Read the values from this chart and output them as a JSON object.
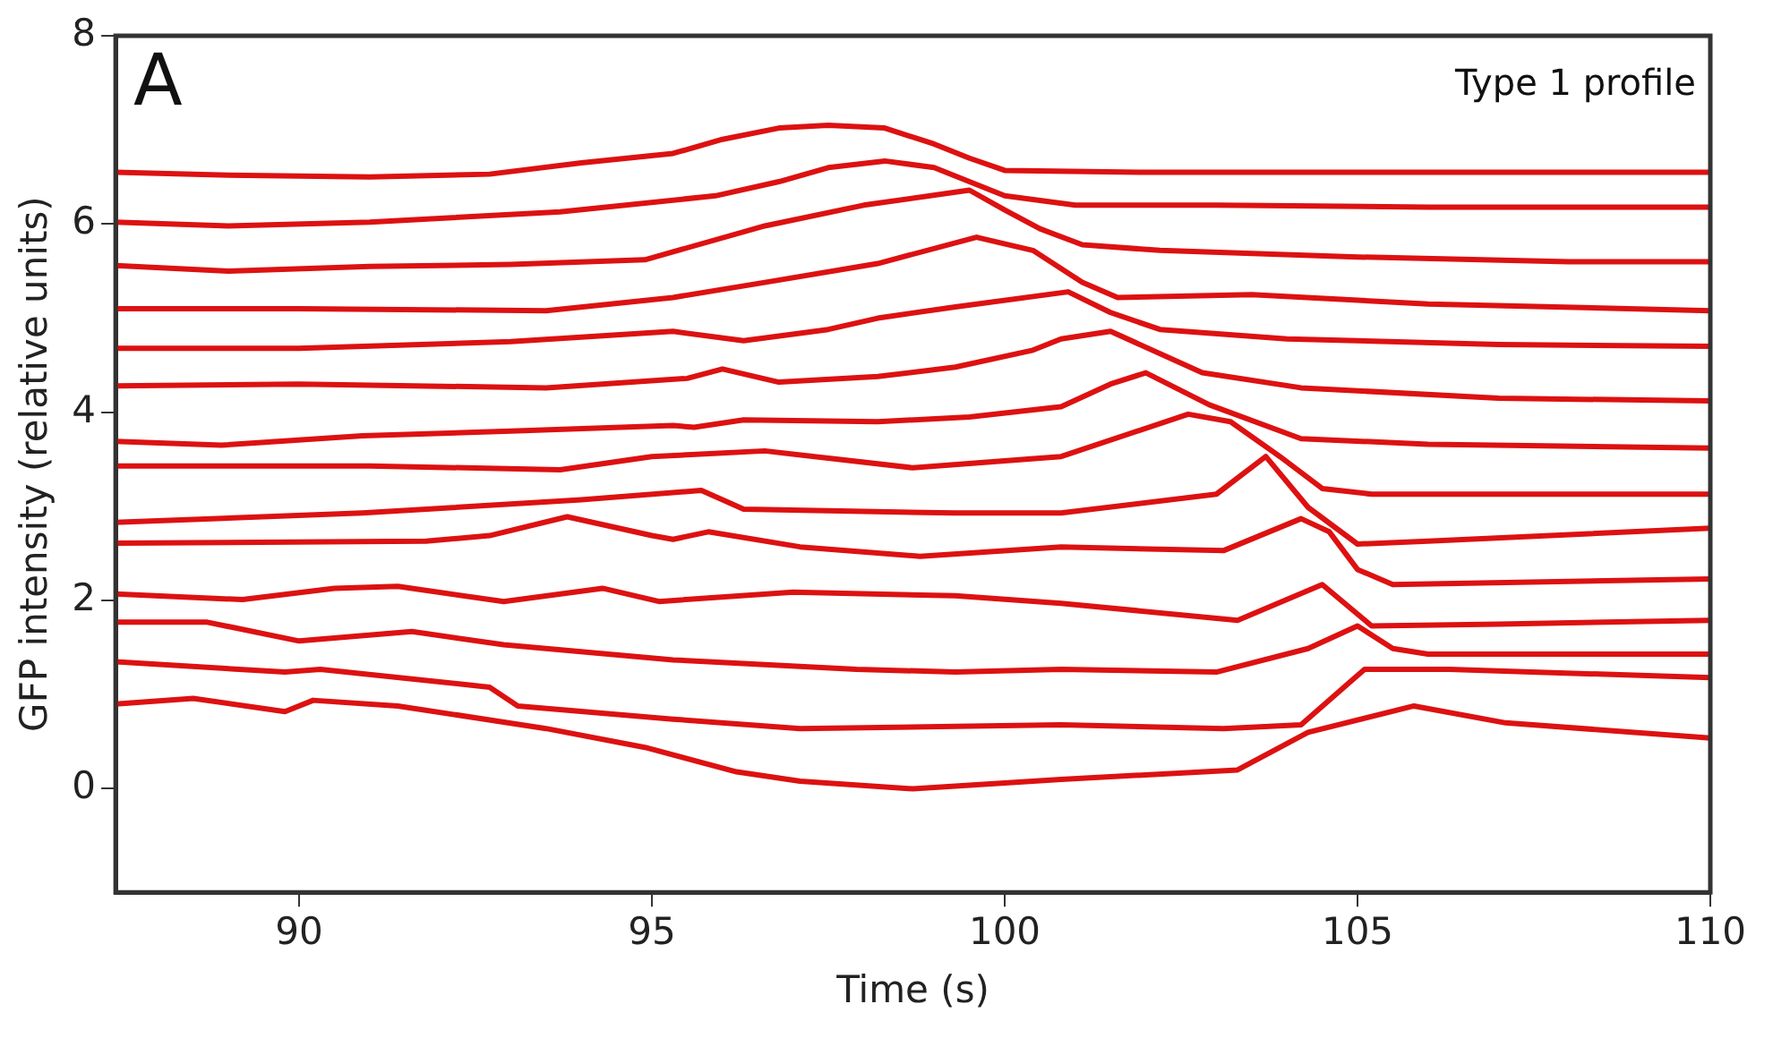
{
  "chart_data": {
    "type": "line",
    "xlabel": "Time (s)",
    "ylabel": "GFP intensity (relative units)",
    "annotations": [
      "A",
      "Type 1 profile"
    ],
    "xlim": [
      87.4,
      110
    ],
    "ylim": [
      -1.1,
      8
    ],
    "xticks": [
      90,
      95,
      100,
      105,
      110
    ],
    "yticks": [
      0,
      2,
      4,
      6,
      8
    ],
    "grid": false,
    "legend": false,
    "marker": "none",
    "line_style": "solid",
    "series": [
      {
        "color": "#dd1111",
        "x": [
          87.4,
          89,
          91,
          92.7,
          94,
          95.3,
          96,
          96.8,
          97.5,
          98.3,
          99,
          99.5,
          100,
          102,
          105,
          108,
          110
        ],
        "values": [
          6.55,
          6.52,
          6.5,
          6.53,
          6.65,
          6.75,
          6.9,
          7.02,
          7.05,
          7.02,
          6.85,
          6.7,
          6.57,
          6.55,
          6.55,
          6.55,
          6.55
        ]
      },
      {
        "color": "#dd1111",
        "x": [
          87.4,
          89,
          91,
          93.7,
          95.9,
          96.8,
          97.5,
          98.3,
          99,
          99.5,
          100,
          101,
          103,
          106,
          110
        ],
        "values": [
          6.02,
          5.98,
          6.02,
          6.13,
          6.3,
          6.45,
          6.6,
          6.67,
          6.6,
          6.45,
          6.3,
          6.2,
          6.2,
          6.18,
          6.18
        ]
      },
      {
        "color": "#dd1111",
        "x": [
          87.4,
          89,
          91,
          93,
          94.9,
          96.6,
          98,
          99.5,
          100,
          100.5,
          101.1,
          102.2,
          105,
          108,
          110
        ],
        "values": [
          5.56,
          5.5,
          5.55,
          5.57,
          5.62,
          5.98,
          6.2,
          6.36,
          6.15,
          5.95,
          5.78,
          5.72,
          5.65,
          5.6,
          5.6
        ]
      },
      {
        "color": "#dd1111",
        "x": [
          87.4,
          90,
          93.5,
          95.3,
          96.6,
          98.2,
          99.6,
          100.4,
          101.1,
          101.6,
          103.5,
          106,
          110
        ],
        "values": [
          5.1,
          5.1,
          5.08,
          5.22,
          5.38,
          5.58,
          5.86,
          5.72,
          5.38,
          5.22,
          5.25,
          5.15,
          5.08
        ]
      },
      {
        "color": "#dd1111",
        "x": [
          87.4,
          90,
          93,
          95.3,
          96.3,
          97.5,
          98.2,
          99.3,
          100.9,
          101.5,
          102.2,
          104,
          107,
          110
        ],
        "values": [
          4.68,
          4.68,
          4.75,
          4.86,
          4.76,
          4.88,
          5.0,
          5.12,
          5.28,
          5.06,
          4.88,
          4.78,
          4.72,
          4.7
        ]
      },
      {
        "color": "#dd1111",
        "x": [
          87.4,
          90,
          93.5,
          95.5,
          96,
          96.8,
          98.2,
          99.3,
          100.4,
          100.8,
          101.5,
          102.8,
          104.2,
          107,
          110
        ],
        "values": [
          4.28,
          4.3,
          4.26,
          4.36,
          4.46,
          4.32,
          4.38,
          4.48,
          4.66,
          4.78,
          4.86,
          4.42,
          4.26,
          4.15,
          4.12
        ]
      },
      {
        "color": "#dd1111",
        "x": [
          87.4,
          88.9,
          90.9,
          93,
          95.3,
          95.6,
          96.3,
          98.2,
          99.5,
          100.8,
          101.5,
          102,
          102.9,
          104.2,
          106,
          110
        ],
        "values": [
          3.69,
          3.65,
          3.75,
          3.8,
          3.86,
          3.84,
          3.92,
          3.9,
          3.95,
          4.06,
          4.3,
          4.42,
          4.08,
          3.72,
          3.66,
          3.62
        ]
      },
      {
        "color": "#dd1111",
        "x": [
          87.4,
          91,
          93.7,
          95,
          96.6,
          98.7,
          100.8,
          102.6,
          103.2,
          103.9,
          104.5,
          105.2,
          107,
          110
        ],
        "values": [
          3.43,
          3.43,
          3.39,
          3.53,
          3.59,
          3.41,
          3.53,
          3.98,
          3.9,
          3.53,
          3.19,
          3.13,
          3.13,
          3.13
        ]
      },
      {
        "color": "#dd1111",
        "x": [
          87.4,
          90.9,
          94,
          95.7,
          96.3,
          99.3,
          100.8,
          103,
          103.7,
          104.3,
          105,
          106,
          110
        ],
        "values": [
          2.83,
          2.93,
          3.07,
          3.17,
          2.97,
          2.93,
          2.93,
          3.13,
          3.53,
          2.99,
          2.6,
          2.63,
          2.77
        ]
      },
      {
        "color": "#dd1111",
        "x": [
          87.4,
          91.8,
          92.7,
          93.8,
          95,
          95.3,
          95.8,
          97.1,
          98.8,
          100.8,
          103.1,
          104.2,
          104.6,
          105,
          105.5,
          110
        ],
        "values": [
          2.61,
          2.63,
          2.69,
          2.89,
          2.69,
          2.65,
          2.73,
          2.57,
          2.47,
          2.57,
          2.53,
          2.87,
          2.73,
          2.33,
          2.17,
          2.23
        ]
      },
      {
        "color": "#dd1111",
        "x": [
          87.4,
          89.2,
          90.5,
          91.4,
          92.9,
          94.3,
          95.1,
          97,
          99.3,
          100.8,
          103.3,
          104.5,
          105.2,
          107,
          110
        ],
        "values": [
          2.07,
          2.01,
          2.13,
          2.15,
          1.99,
          2.13,
          1.99,
          2.09,
          2.05,
          1.97,
          1.79,
          2.17,
          1.73,
          1.75,
          1.79
        ]
      },
      {
        "color": "#dd1111",
        "x": [
          87.4,
          88.7,
          90,
          91.6,
          92.9,
          95.3,
          97.9,
          99.3,
          100.8,
          103,
          104.3,
          105,
          105.5,
          106,
          110
        ],
        "values": [
          1.77,
          1.77,
          1.57,
          1.67,
          1.53,
          1.37,
          1.27,
          1.24,
          1.27,
          1.24,
          1.49,
          1.73,
          1.49,
          1.43,
          1.43
        ]
      },
      {
        "color": "#dd1111",
        "x": [
          87.4,
          89.8,
          90.3,
          92.7,
          93.1,
          95.3,
          97.1,
          100.8,
          103.1,
          104.2,
          105.1,
          106.3,
          110
        ],
        "values": [
          1.35,
          1.24,
          1.27,
          1.08,
          0.88,
          0.74,
          0.64,
          0.68,
          0.64,
          0.68,
          1.27,
          1.27,
          1.18
        ]
      },
      {
        "color": "#dd1111",
        "x": [
          87.4,
          88.5,
          89.8,
          90.2,
          91.4,
          93.5,
          94.9,
          96.2,
          97.1,
          98.7,
          100.8,
          103.3,
          104.3,
          105.8,
          107.1,
          110
        ],
        "values": [
          0.9,
          0.96,
          0.82,
          0.94,
          0.88,
          0.64,
          0.44,
          0.18,
          0.08,
          0.0,
          0.1,
          0.2,
          0.6,
          0.88,
          0.7,
          0.54
        ]
      }
    ]
  }
}
